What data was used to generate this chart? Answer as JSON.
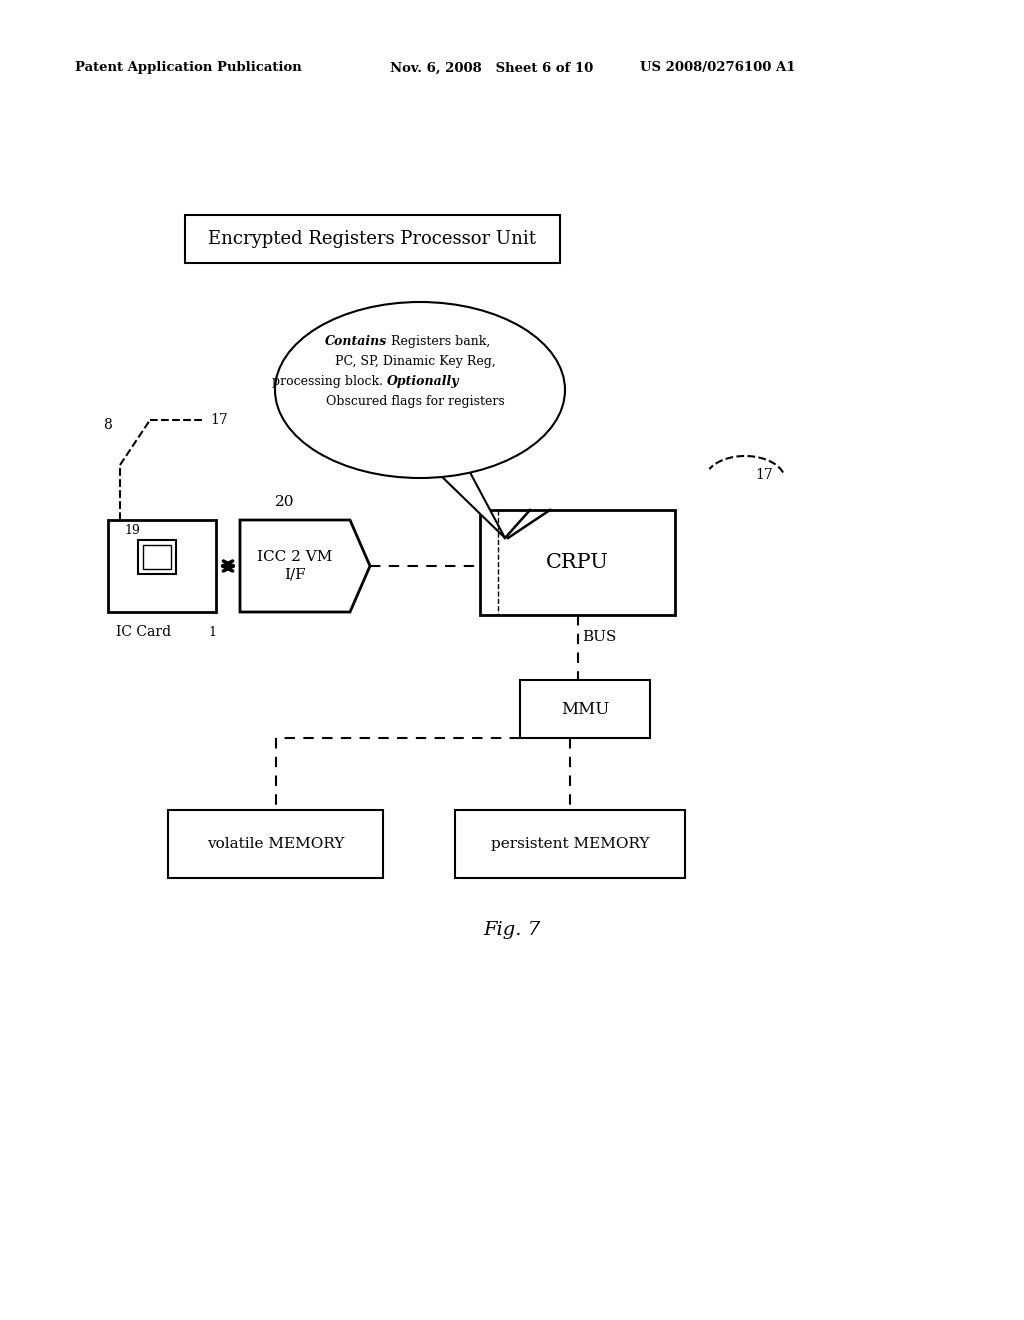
{
  "bg_color": "#ffffff",
  "header_left": "Patent Application Publication",
  "header_mid": "Nov. 6, 2008   Sheet 6 of 10",
  "header_right": "US 2008/0276100 A1",
  "title_box_text": "Encrypted Registers Processor Unit",
  "fig_caption": "Fig. 7",
  "labels": {
    "num8": "8",
    "num17_left": "17",
    "num17_right": "17",
    "num19": "19",
    "num20": "20",
    "num1": "1",
    "ic_card": "IC Card",
    "bus": "BUS",
    "icc_vm": "ICC 2 VM\nI/F",
    "crpu": "CRPU",
    "mmu": "MMU",
    "vol_mem": "volatile MEMORY",
    "per_mem": "persistent MEMORY"
  }
}
